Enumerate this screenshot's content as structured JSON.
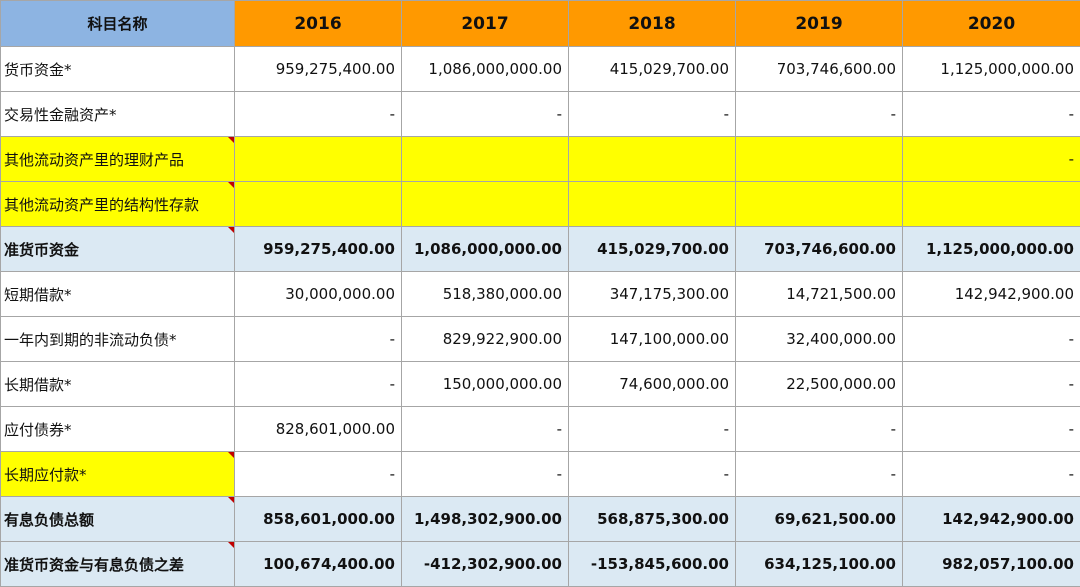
{
  "header": {
    "name": "科目名称",
    "years": [
      "2016",
      "2017",
      "2018",
      "2019",
      "2020"
    ]
  },
  "rows": [
    {
      "label": "货币资金*",
      "values": [
        "959,275,400.00",
        "1,086,000,000.00",
        "415,029,700.00",
        "703,746,600.00",
        "1,125,000,000.00"
      ]
    },
    {
      "label": "交易性金融资产*",
      "values": [
        "-",
        "-",
        "-",
        "-",
        "-"
      ]
    },
    {
      "label": "其他流动资产里的理财产品",
      "values": [
        "",
        "",
        "",
        "",
        "-"
      ]
    },
    {
      "label": "其他流动资产里的结构性存款",
      "values": [
        "",
        "",
        "",
        "",
        ""
      ]
    },
    {
      "label": "准货币资金",
      "values": [
        "959,275,400.00",
        "1,086,000,000.00",
        "415,029,700.00",
        "703,746,600.00",
        "1,125,000,000.00"
      ]
    },
    {
      "label": "短期借款*",
      "values": [
        "30,000,000.00",
        "518,380,000.00",
        "347,175,300.00",
        "14,721,500.00",
        "142,942,900.00"
      ]
    },
    {
      "label": "一年内到期的非流动负债*",
      "values": [
        "-",
        "829,922,900.00",
        "147,100,000.00",
        "32,400,000.00",
        "-"
      ]
    },
    {
      "label": "长期借款*",
      "values": [
        "-",
        "150,000,000.00",
        "74,600,000.00",
        "22,500,000.00",
        "-"
      ]
    },
    {
      "label": "应付债券*",
      "values": [
        "828,601,000.00",
        "-",
        "-",
        "-",
        "-"
      ]
    },
    {
      "label": "长期应付款*",
      "values": [
        "-",
        "-",
        "-",
        "-",
        "-"
      ]
    },
    {
      "label": "有息负债总额",
      "values": [
        "858,601,000.00",
        "1,498,302,900.00",
        "568,875,300.00",
        "69,621,500.00",
        "142,942,900.00"
      ]
    },
    {
      "label": "准货币资金与有息负债之差",
      "values": [
        "100,674,400.00",
        "-412,302,900.00",
        "-153,845,600.00",
        "634,125,100.00",
        "982,057,100.00"
      ]
    }
  ],
  "colors": {
    "header_name_bg": "#8db4e2",
    "header_year_bg": "#ff9900",
    "highlight_yellow": "#ffff00",
    "summary_blue": "#dbe9f3",
    "comment_marker": "#c00000"
  }
}
